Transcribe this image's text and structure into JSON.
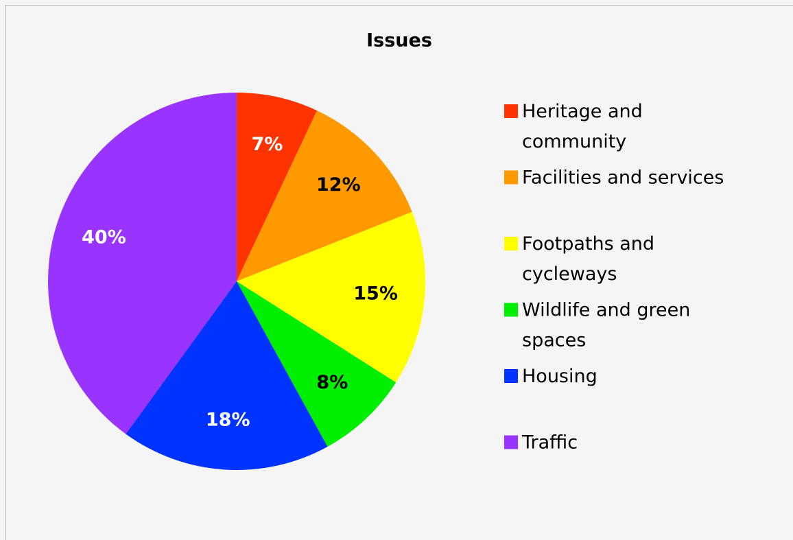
{
  "chart_data": {
    "type": "pie",
    "title": "Issues",
    "categories": [
      "Heritage and community",
      "Facilities and services",
      "Footpaths and cycleways",
      "Wildlife and green spaces",
      "Housing",
      "Traffic"
    ],
    "values": [
      7,
      12,
      15,
      8,
      18,
      40
    ],
    "value_labels": [
      "7%",
      "12%",
      "15%",
      "8%",
      "18%",
      "40%"
    ],
    "colors": [
      "#ff3300",
      "#ff9900",
      "#ffff00",
      "#00ee00",
      "#0033ff",
      "#9933ff"
    ],
    "legend": "right"
  }
}
